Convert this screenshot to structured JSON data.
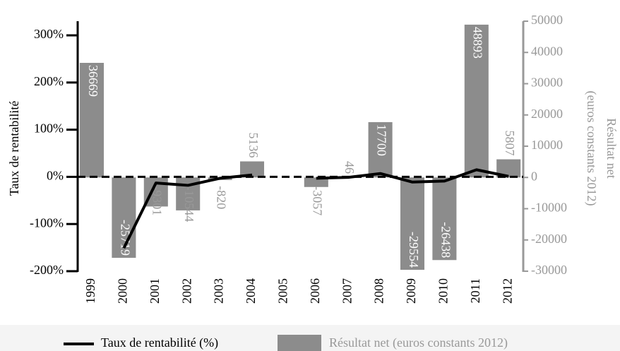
{
  "chart_data": {
    "type": "bar-line",
    "ylabel": "Taux de rentabilité",
    "y2label": [
      "Résultat net",
      "(euros constants 2012)"
    ],
    "categories": [
      "1999",
      "2000",
      "2001",
      "2002",
      "2003",
      "2004",
      "2005",
      "2006",
      "2007",
      "2008",
      "2009",
      "2010",
      "2011",
      "2012"
    ],
    "series": [
      {
        "name": "Taux de rentabilité (%)",
        "type": "line",
        "color": "#000000",
        "values": [
          null,
          -151,
          -13,
          -18,
          -3,
          4,
          null,
          -3,
          -1,
          7,
          -11,
          -9,
          15,
          1
        ]
      },
      {
        "name": "Résultat net (euros constants 2012)",
        "type": "bar",
        "axis": "y2",
        "color": "#8c8c8c",
        "values": [
          36669,
          -25719,
          -9301,
          -10544,
          -820,
          5136,
          null,
          -3057,
          46,
          17700,
          -29554,
          -26438,
          48893,
          5807
        ]
      }
    ],
    "ylim": [
      -200,
      330
    ],
    "yticks": [
      {
        "value": -200,
        "label": "-200%"
      },
      {
        "value": -100,
        "label": "-100%"
      },
      {
        "value": 0,
        "label": "0%"
      },
      {
        "value": 100,
        "label": "100%"
      },
      {
        "value": 200,
        "label": "200%"
      },
      {
        "value": 300,
        "label": "300%"
      }
    ],
    "y2lim": [
      -30000,
      50000
    ],
    "y2ticks": [
      -30000,
      -20000,
      -10000,
      0,
      10000,
      20000,
      30000,
      40000,
      50000
    ]
  }
}
